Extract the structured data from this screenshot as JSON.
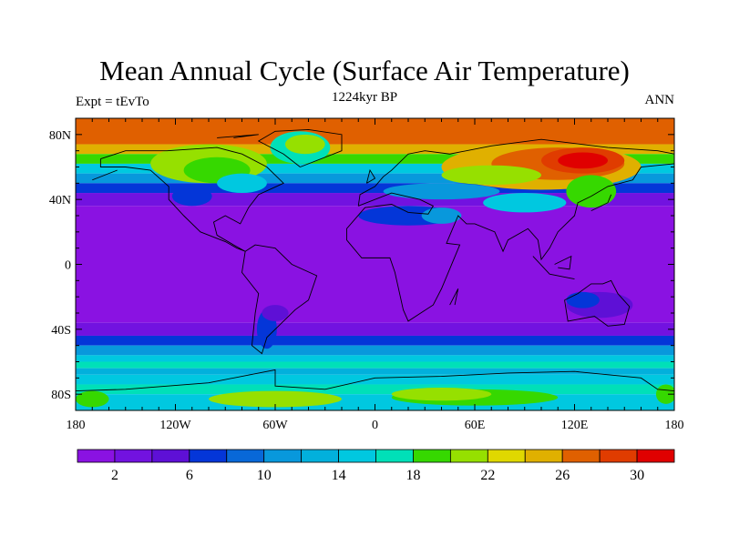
{
  "chart_data": {
    "type": "heatmap",
    "title": "Mean Annual Cycle (Surface Air Temperature)",
    "left_subtitle": "Expt = tEvTo",
    "center_subtitle": "1224kyr BP",
    "right_subtitle": "ANN",
    "x_ticks": [
      "180",
      "120W",
      "60W",
      "0",
      "60E",
      "120E",
      "180"
    ],
    "x_tick_values": [
      -180,
      -120,
      -60,
      0,
      60,
      120,
      180
    ],
    "y_ticks": [
      "80N",
      "40N",
      "0",
      "40S",
      "80S"
    ],
    "y_tick_values": [
      80,
      40,
      0,
      -40,
      -80
    ],
    "xlim": [
      -180,
      180
    ],
    "ylim": [
      -90,
      90
    ],
    "colorbar": {
      "levels": [
        2,
        4,
        6,
        8,
        10,
        12,
        14,
        16,
        18,
        20,
        22,
        24,
        26,
        28,
        30
      ],
      "labels": [
        "2",
        "6",
        "10",
        "14",
        "18",
        "22",
        "26",
        "30"
      ],
      "label_values": [
        2,
        6,
        10,
        14,
        18,
        22,
        26,
        30
      ],
      "colors": [
        "#8a12e2",
        "#7212e0",
        "#5e10d6",
        "#0436d8",
        "#0868d8",
        "#0898dc",
        "#02b0dc",
        "#00c8e0",
        "#00e0b8",
        "#36d800",
        "#96e000",
        "#e0d800",
        "#e0b000",
        "#e06000",
        "#e03c00",
        "#e00000"
      ]
    }
  }
}
